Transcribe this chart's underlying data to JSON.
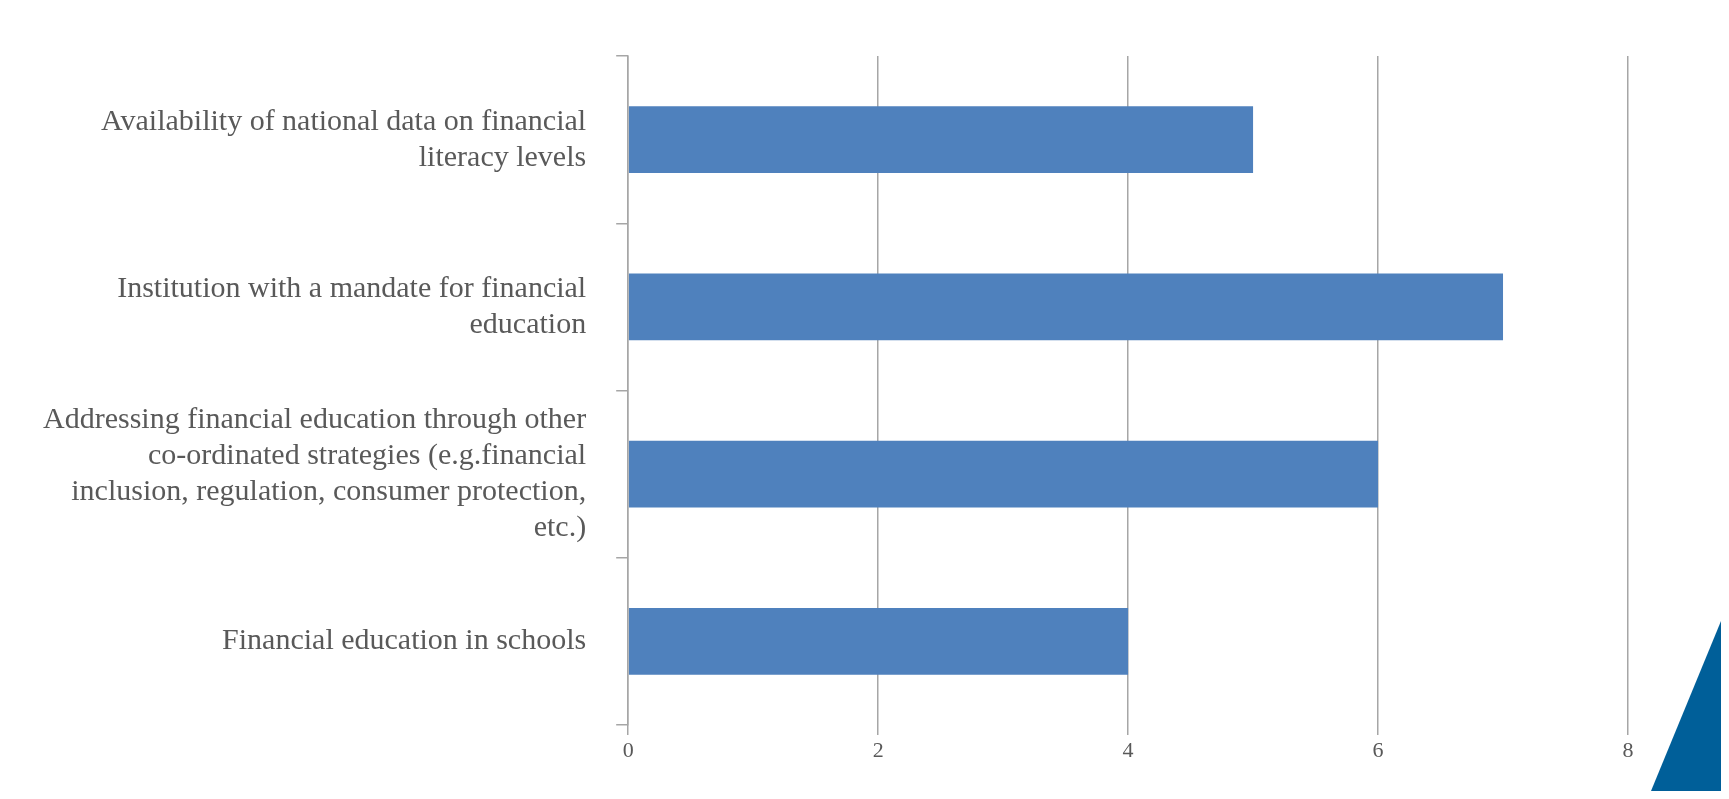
{
  "chart_data": {
    "type": "bar",
    "orientation": "horizontal",
    "categories": [
      "Availability of national data on financial literacy levels",
      "Institution with a mandate for financial education",
      "Addressing financial education through other co-ordinated strategies (e.g.financial inclusion, regulation, consumer protection, etc.)",
      "Financial education in schools"
    ],
    "values": [
      5,
      7,
      6,
      4
    ],
    "color": "#4f81bd",
    "xlim": [
      0,
      8
    ],
    "xticks": [
      0,
      2,
      4,
      6,
      8
    ],
    "grid": "x",
    "legend": false
  }
}
